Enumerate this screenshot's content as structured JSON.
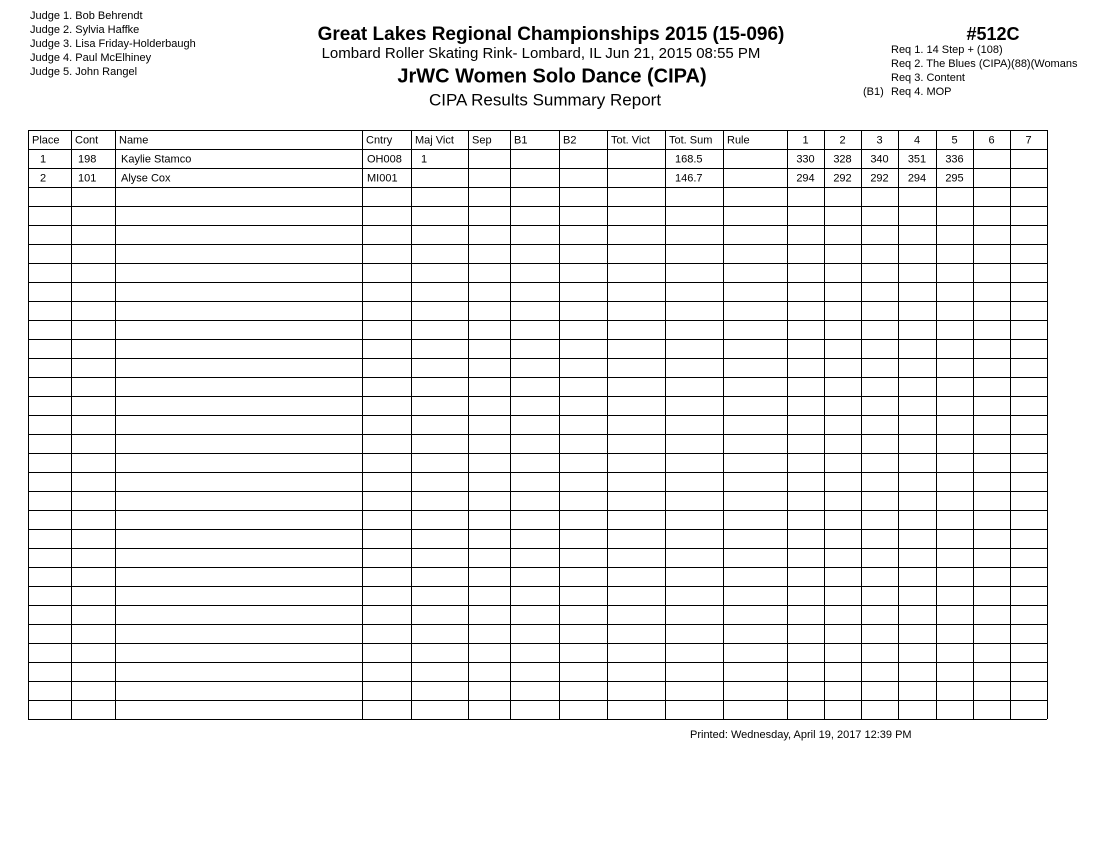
{
  "header": {
    "judges": [
      "Judge 1.  Bob Behrendt",
      "Judge 2.  Sylvia Haffke",
      "Judge 3.  Lisa Friday-Holderbaugh",
      "Judge 4.  Paul McElhiney",
      "Judge 5.  John Rangel"
    ],
    "title": "Great Lakes Regional Championships 2015 (15-096)",
    "location": "Lombard Roller Skating Rink- Lombard, IL  Jun 21, 2015  08:55 PM",
    "event": "JrWC Women Solo Dance (CIPA)",
    "report": "CIPA Results Summary Report",
    "event_number": "#512C",
    "requirements": [
      {
        "text": "Req 1.  14 Step + (108)"
      },
      {
        "text": "Req 2.  The Blues (CIPA)(88)(Womans"
      },
      {
        "text": "Req 3.  Content"
      },
      {
        "prefix": "(B1)",
        "text": "Req 4.  MOP"
      }
    ]
  },
  "table": {
    "headers": [
      "Place",
      "Cont",
      "Name",
      "Cntry",
      "Maj Vict",
      "Sep",
      "B1",
      "B2",
      "Tot. Vict",
      "Tot. Sum",
      "Rule",
      "1",
      "2",
      "3",
      "4",
      "5",
      "6",
      "7"
    ],
    "rows": [
      {
        "place": 1,
        "cont": 198,
        "name": "Kaylie Stamco",
        "cntry": "OH008",
        "maj_vict": 1,
        "tot_sum": 168.5,
        "scores": [
          330,
          328,
          340,
          351,
          336
        ]
      },
      {
        "place": 2,
        "cont": 101,
        "name": "Alyse Cox",
        "cntry": "MI001",
        "tot_sum": 146.7,
        "scores": [
          294,
          292,
          292,
          294,
          295
        ]
      }
    ]
  },
  "footer": {
    "printed": "Printed:  Wednesday, April 19, 2017  12:39 PM"
  }
}
